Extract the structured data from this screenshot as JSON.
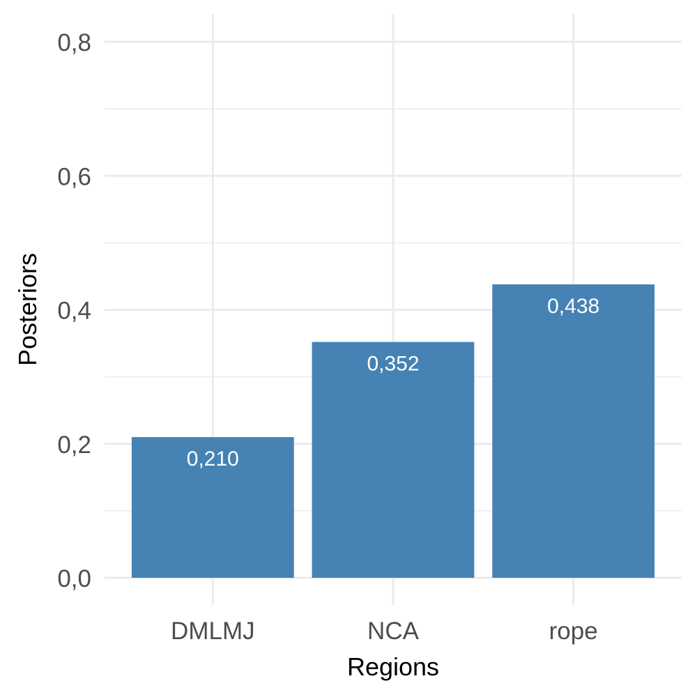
{
  "chart_data": {
    "type": "bar",
    "categories": [
      "DMLMJ",
      "NCA",
      "rope"
    ],
    "values": [
      0.21,
      0.352,
      0.438
    ],
    "data_labels": [
      "0,210",
      "0,352",
      "0,438"
    ],
    "title": "",
    "xlabel": "Regions",
    "ylabel": "Posteriors",
    "ylim": [
      0,
      0.8
    ],
    "yticks": [
      0,
      0.2,
      0.4,
      0.6,
      0.8
    ],
    "ytick_labels": [
      "0,0",
      "0,2",
      "0,4",
      "0,6",
      "0,8"
    ],
    "bar_color": "#4682b4",
    "grid": true,
    "legend": "none"
  }
}
